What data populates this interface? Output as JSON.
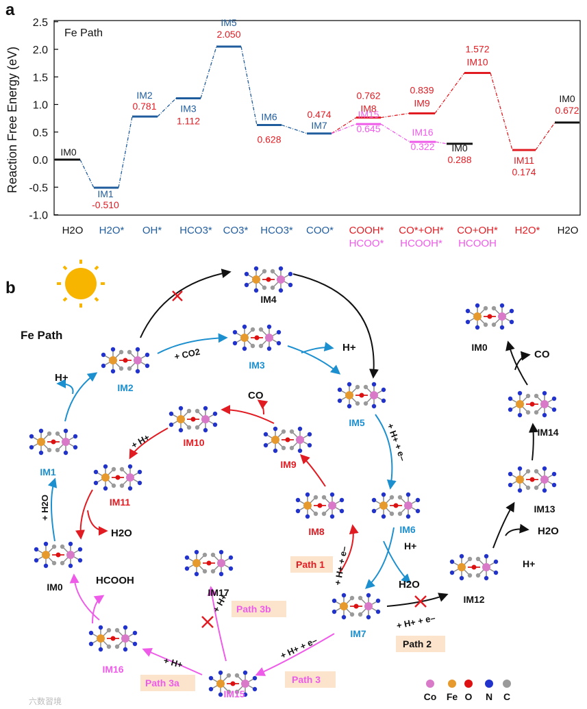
{
  "panel_a": {
    "letter": "a",
    "label": "Fe Path",
    "ylabel": "Reaction Free Energy (eV)",
    "yticks": [
      "2.5",
      "2.0",
      "1.5",
      "1.0",
      "0.5",
      "0.0",
      "-0.5",
      "-1.0"
    ],
    "xlabels": [
      {
        "top": "H2O",
        "bottom": "",
        "color": "#111111"
      },
      {
        "top": "H2O*",
        "bottom": "",
        "color": "#1f5c9e"
      },
      {
        "top": "OH*",
        "bottom": "",
        "color": "#1f5c9e"
      },
      {
        "top": "HCO3*",
        "bottom": "",
        "color": "#1f5c9e"
      },
      {
        "top": "CO3*",
        "bottom": "",
        "color": "#1f5c9e"
      },
      {
        "top": "HCO3*",
        "bottom": "",
        "color": "#1f5c9e"
      },
      {
        "top": "COO*",
        "bottom": "",
        "color": "#1f5c9e"
      },
      {
        "top": "COOH*",
        "bottom": "HCOO*",
        "color": "#e11b22"
      },
      {
        "top": "CO*+OH*",
        "bottom": "HCOOH*",
        "color": "#e11b22"
      },
      {
        "top": "CO+OH*",
        "bottom": "HCOOH",
        "color": "#e11b22"
      },
      {
        "top": "H2O*",
        "bottom": "",
        "color": "#e11b22"
      },
      {
        "top": "H2O",
        "bottom": "",
        "color": "#111111"
      }
    ],
    "levels": [
      {
        "name": "IM0",
        "value": "",
        "energy": 0.0,
        "color": "#111111"
      },
      {
        "name": "IM1",
        "value": "-0.510",
        "energy": -0.51,
        "color": "#1f5c9e"
      },
      {
        "name": "IM2",
        "value": "0.781",
        "energy": 0.781,
        "color": "#1f5c9e"
      },
      {
        "name": "IM3",
        "value": "1.112",
        "energy": 1.112,
        "color": "#1f5c9e"
      },
      {
        "name": "IM5",
        "value": "2.050",
        "energy": 2.05,
        "color": "#1f5c9e"
      },
      {
        "name": "IM6",
        "value": "0.628",
        "energy": 0.628,
        "color": "#1f5c9e"
      },
      {
        "name": "IM7",
        "value": "0.474",
        "energy": 0.474,
        "color": "#1f5c9e"
      },
      {
        "name": "IM8",
        "value": "0.762",
        "energy": 0.762,
        "color": "#e11b22"
      },
      {
        "name": "IM9",
        "value": "0.839",
        "energy": 0.839,
        "color": "#e11b22"
      },
      {
        "name": "IM10",
        "value": "1.572",
        "energy": 1.572,
        "color": "#e11b22"
      },
      {
        "name": "IM11",
        "value": "0.174",
        "energy": 0.174,
        "color": "#e11b22"
      },
      {
        "name": "IM0",
        "value": "0.672",
        "energy": 0.672,
        "color": "#111111"
      },
      {
        "name": "IM15",
        "value": "0.645",
        "energy": 0.645,
        "color": "#ee5be8"
      },
      {
        "name": "IM16",
        "value": "0.322",
        "energy": 0.322,
        "color": "#ee5be8"
      },
      {
        "name": "IM0",
        "value": "0.288",
        "energy": 0.288,
        "color": "#111111"
      }
    ]
  },
  "panel_b": {
    "letter": "b",
    "label": "Fe Path",
    "intermediates": [
      "IM0",
      "IM1",
      "IM2",
      "IM3",
      "IM4",
      "IM5",
      "IM6",
      "IM7",
      "IM8",
      "IM9",
      "IM10",
      "IM11",
      "IM12",
      "IM13",
      "IM14",
      "IM0",
      "IM15",
      "IM16",
      "IM17"
    ],
    "species": {
      "h_plus": "H+",
      "co2": "+ CO2",
      "co": "CO",
      "h2o": "H2O",
      "hcooh": "HCOOH",
      "plus_h2o": "+ H2O",
      "plus_h": "+ H+",
      "plus_he": "+ H+ + e–"
    },
    "paths": [
      "Path 1",
      "Path 2",
      "Path 3",
      "Path 3a",
      "Path 3b"
    ],
    "legend": [
      "Co",
      "Fe",
      "O",
      "N",
      "C"
    ],
    "watermark": "六数習境"
  },
  "colors": {
    "blue": "#1f5c9e",
    "red": "#e11b22",
    "pink": "#ee5be8",
    "cyan": "#1c8fcf",
    "fe": "#e69a2e",
    "co": "#d87ac8",
    "n": "#2233cc",
    "c": "#9a9a9a",
    "o": "#dd1111",
    "sun": "#f7b500"
  }
}
